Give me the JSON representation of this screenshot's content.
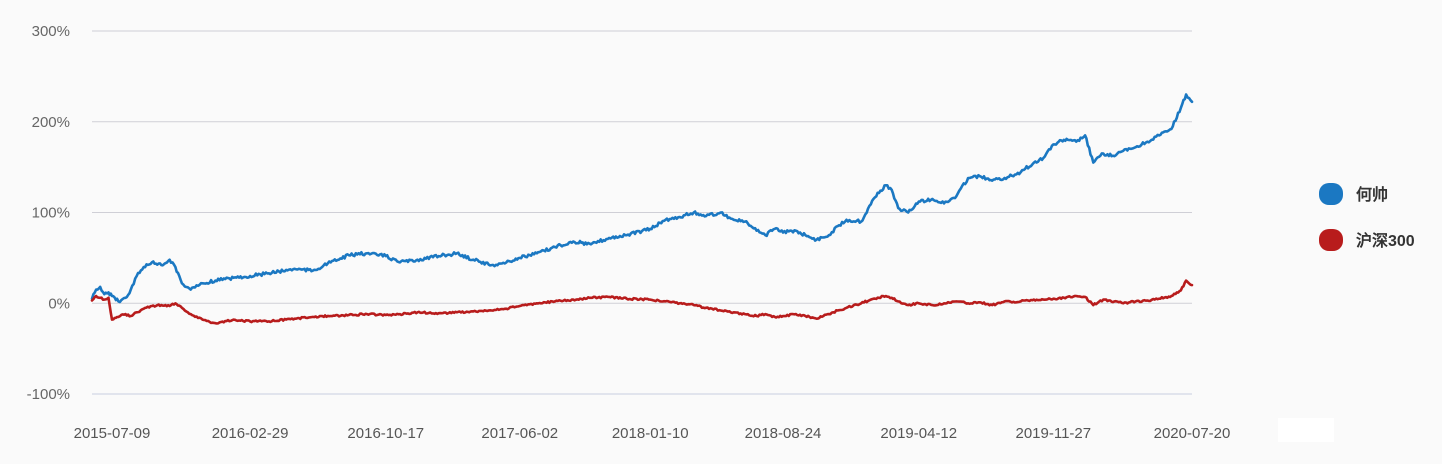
{
  "chart_data": {
    "type": "line",
    "title": "",
    "xlabel": "",
    "ylabel": "",
    "y_unit": "%",
    "ylim": [
      -100,
      300
    ],
    "y_ticks": [
      300,
      200,
      100,
      0,
      -100
    ],
    "y_tick_labels": [
      "300%",
      "200%",
      "100%",
      "0%",
      "-100%"
    ],
    "x_range": [
      "2015-06-05",
      "2020-07-20"
    ],
    "x_ticks": [
      "2015-07-09",
      "2016-02-29",
      "2016-10-17",
      "2017-06-02",
      "2018-01-10",
      "2018-08-24",
      "2019-04-12",
      "2019-11-27",
      "2020-07-20"
    ],
    "grid": true,
    "legend_position": "right",
    "series": [
      {
        "name": "何帅",
        "color": "#1b78c2",
        "points": [
          [
            "2015-06-05",
            5
          ],
          [
            "2015-06-12",
            15
          ],
          [
            "2015-06-19",
            18
          ],
          [
            "2015-06-26",
            10
          ],
          [
            "2015-07-03",
            12
          ],
          [
            "2015-07-09",
            8
          ],
          [
            "2015-07-20",
            2
          ],
          [
            "2015-08-01",
            6
          ],
          [
            "2015-08-10",
            15
          ],
          [
            "2015-08-20",
            30
          ],
          [
            "2015-09-01",
            40
          ],
          [
            "2015-09-15",
            45
          ],
          [
            "2015-10-01",
            42
          ],
          [
            "2015-10-15",
            48
          ],
          [
            "2015-10-25",
            40
          ],
          [
            "2015-11-05",
            22
          ],
          [
            "2015-11-20",
            15
          ],
          [
            "2015-12-10",
            22
          ],
          [
            "2016-01-01",
            25
          ],
          [
            "2016-02-01",
            28
          ],
          [
            "2016-02-29",
            30
          ],
          [
            "2016-04-01",
            33
          ],
          [
            "2016-05-15",
            38
          ],
          [
            "2016-06-15",
            36
          ],
          [
            "2016-07-15",
            45
          ],
          [
            "2016-08-15",
            53
          ],
          [
            "2016-09-15",
            55
          ],
          [
            "2016-10-17",
            52
          ],
          [
            "2016-11-10",
            45
          ],
          [
            "2016-12-10",
            48
          ],
          [
            "2017-01-15",
            52
          ],
          [
            "2017-02-15",
            55
          ],
          [
            "2017-03-15",
            48
          ],
          [
            "2017-04-15",
            42
          ],
          [
            "2017-05-10",
            45
          ],
          [
            "2017-06-02",
            50
          ],
          [
            "2017-07-01",
            55
          ],
          [
            "2017-08-01",
            62
          ],
          [
            "2017-09-01",
            68
          ],
          [
            "2017-10-01",
            65
          ],
          [
            "2017-11-01",
            72
          ],
          [
            "2017-12-01",
            75
          ],
          [
            "2018-01-10",
            82
          ],
          [
            "2018-02-05",
            92
          ],
          [
            "2018-03-01",
            95
          ],
          [
            "2018-03-25",
            100
          ],
          [
            "2018-04-15",
            96
          ],
          [
            "2018-05-10",
            100
          ],
          [
            "2018-06-01",
            92
          ],
          [
            "2018-06-20",
            90
          ],
          [
            "2018-07-10",
            80
          ],
          [
            "2018-07-25",
            75
          ],
          [
            "2018-08-10",
            82
          ],
          [
            "2018-08-24",
            78
          ],
          [
            "2018-09-15",
            80
          ],
          [
            "2018-10-01",
            75
          ],
          [
            "2018-10-20",
            70
          ],
          [
            "2018-11-10",
            75
          ],
          [
            "2018-11-25",
            85
          ],
          [
            "2018-12-10",
            92
          ],
          [
            "2019-01-04",
            90
          ],
          [
            "2019-01-25",
            115
          ],
          [
            "2019-02-15",
            130
          ],
          [
            "2019-02-25",
            125
          ],
          [
            "2019-03-08",
            105
          ],
          [
            "2019-03-25",
            100
          ],
          [
            "2019-04-12",
            112
          ],
          [
            "2019-05-05",
            115
          ],
          [
            "2019-05-25",
            110
          ],
          [
            "2019-06-15",
            118
          ],
          [
            "2019-07-05",
            138
          ],
          [
            "2019-07-25",
            140
          ],
          [
            "2019-08-15",
            135
          ],
          [
            "2019-09-05",
            138
          ],
          [
            "2019-09-25",
            142
          ],
          [
            "2019-10-10",
            148
          ],
          [
            "2019-10-25",
            155
          ],
          [
            "2019-11-10",
            160
          ],
          [
            "2019-11-27",
            175
          ],
          [
            "2019-12-15",
            180
          ],
          [
            "2020-01-05",
            178
          ],
          [
            "2020-01-20",
            185
          ],
          [
            "2020-02-03",
            155
          ],
          [
            "2020-02-20",
            165
          ],
          [
            "2020-03-10",
            162
          ],
          [
            "2020-03-25",
            168
          ],
          [
            "2020-04-15",
            172
          ],
          [
            "2020-05-05",
            178
          ],
          [
            "2020-05-25",
            185
          ],
          [
            "2020-06-15",
            192
          ],
          [
            "2020-07-01",
            215
          ],
          [
            "2020-07-10",
            230
          ],
          [
            "2020-07-20",
            222
          ]
        ]
      },
      {
        "name": "沪深300",
        "color": "#b81c1c",
        "points": [
          [
            "2015-06-05",
            3
          ],
          [
            "2015-06-12",
            8
          ],
          [
            "2015-06-19",
            6
          ],
          [
            "2015-06-26",
            4
          ],
          [
            "2015-07-03",
            6
          ],
          [
            "2015-07-09",
            -18
          ],
          [
            "2015-07-20",
            -15
          ],
          [
            "2015-08-01",
            -12
          ],
          [
            "2015-08-10",
            -14
          ],
          [
            "2015-08-20",
            -10
          ],
          [
            "2015-09-01",
            -6
          ],
          [
            "2015-09-15",
            -3
          ],
          [
            "2015-10-01",
            -2
          ],
          [
            "2015-10-15",
            -3
          ],
          [
            "2015-10-25",
            0
          ],
          [
            "2015-11-05",
            -5
          ],
          [
            "2015-11-20",
            -12
          ],
          [
            "2015-12-10",
            -18
          ],
          [
            "2016-01-01",
            -22
          ],
          [
            "2016-02-01",
            -18
          ],
          [
            "2016-02-29",
            -20
          ],
          [
            "2016-04-01",
            -20
          ],
          [
            "2016-05-15",
            -17
          ],
          [
            "2016-06-15",
            -15
          ],
          [
            "2016-07-15",
            -14
          ],
          [
            "2016-08-15",
            -13
          ],
          [
            "2016-09-15",
            -12
          ],
          [
            "2016-10-17",
            -13
          ],
          [
            "2016-11-10",
            -12
          ],
          [
            "2016-12-10",
            -10
          ],
          [
            "2017-01-15",
            -11
          ],
          [
            "2017-02-15",
            -10
          ],
          [
            "2017-03-15",
            -9
          ],
          [
            "2017-04-15",
            -8
          ],
          [
            "2017-05-10",
            -6
          ],
          [
            "2017-06-02",
            -3
          ],
          [
            "2017-07-01",
            0
          ],
          [
            "2017-08-01",
            2
          ],
          [
            "2017-09-01",
            4
          ],
          [
            "2017-10-01",
            6
          ],
          [
            "2017-11-01",
            7
          ],
          [
            "2017-12-01",
            5
          ],
          [
            "2018-01-10",
            4
          ],
          [
            "2018-02-05",
            2
          ],
          [
            "2018-03-01",
            0
          ],
          [
            "2018-03-25",
            -2
          ],
          [
            "2018-04-15",
            -5
          ],
          [
            "2018-05-10",
            -8
          ],
          [
            "2018-06-01",
            -10
          ],
          [
            "2018-06-20",
            -12
          ],
          [
            "2018-07-10",
            -14
          ],
          [
            "2018-07-25",
            -12
          ],
          [
            "2018-08-10",
            -15
          ],
          [
            "2018-08-24",
            -14
          ],
          [
            "2018-09-15",
            -12
          ],
          [
            "2018-10-01",
            -14
          ],
          [
            "2018-10-20",
            -17
          ],
          [
            "2018-11-10",
            -12
          ],
          [
            "2018-11-25",
            -8
          ],
          [
            "2018-12-10",
            -5
          ],
          [
            "2019-01-04",
            0
          ],
          [
            "2019-01-25",
            5
          ],
          [
            "2019-02-15",
            8
          ],
          [
            "2019-02-25",
            6
          ],
          [
            "2019-03-08",
            2
          ],
          [
            "2019-03-25",
            -2
          ],
          [
            "2019-04-12",
            0
          ],
          [
            "2019-05-05",
            -2
          ],
          [
            "2019-05-25",
            0
          ],
          [
            "2019-06-15",
            2
          ],
          [
            "2019-07-05",
            0
          ],
          [
            "2019-07-25",
            1
          ],
          [
            "2019-08-15",
            -2
          ],
          [
            "2019-09-05",
            2
          ],
          [
            "2019-09-25",
            1
          ],
          [
            "2019-10-10",
            3
          ],
          [
            "2019-10-25",
            4
          ],
          [
            "2019-11-10",
            4
          ],
          [
            "2019-11-27",
            5
          ],
          [
            "2019-12-15",
            6
          ],
          [
            "2020-01-05",
            8
          ],
          [
            "2020-01-20",
            7
          ],
          [
            "2020-02-03",
            -2
          ],
          [
            "2020-02-20",
            4
          ],
          [
            "2020-03-10",
            2
          ],
          [
            "2020-03-25",
            0
          ],
          [
            "2020-04-15",
            2
          ],
          [
            "2020-05-05",
            3
          ],
          [
            "2020-05-25",
            5
          ],
          [
            "2020-06-15",
            8
          ],
          [
            "2020-07-01",
            14
          ],
          [
            "2020-07-10",
            25
          ],
          [
            "2020-07-20",
            20
          ]
        ]
      }
    ]
  }
}
